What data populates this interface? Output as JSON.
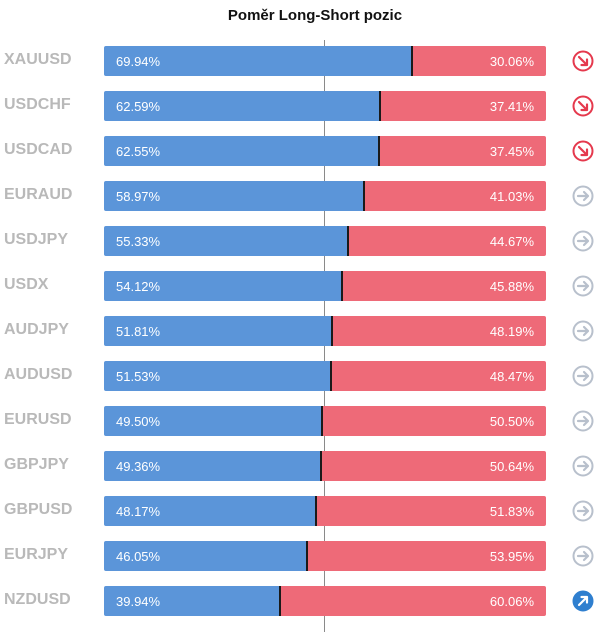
{
  "chart_data": {
    "type": "bar",
    "title": "Poměr Long-Short pozic",
    "categories": [
      "XAUUSD",
      "USDCHF",
      "USDCAD",
      "EURAUD",
      "USDJPY",
      "USDX",
      "AUDJPY",
      "AUDUSD",
      "EURUSD",
      "GBPJPY",
      "GBPUSD",
      "EURJPY",
      "NZDUSD"
    ],
    "series": [
      {
        "values": [
          69.94,
          62.59,
          62.55,
          58.97,
          55.33,
          54.12,
          51.81,
          51.53,
          49.5,
          49.36,
          48.17,
          46.05,
          39.94
        ]
      },
      {
        "values": [
          30.06,
          37.41,
          37.45,
          41.03,
          44.67,
          45.88,
          48.19,
          48.47,
          50.5,
          50.64,
          51.83,
          53.95,
          60.06
        ]
      }
    ],
    "long_labels": [
      "69.94%",
      "62.59%",
      "62.55%",
      "58.97%",
      "55.33%",
      "54.12%",
      "51.81%",
      "51.53%",
      "49.50%",
      "49.36%",
      "48.17%",
      "46.05%",
      "39.94%"
    ],
    "short_labels": [
      "30.06%",
      "37.41%",
      "37.45%",
      "41.03%",
      "44.67%",
      "45.88%",
      "48.19%",
      "48.47%",
      "50.50%",
      "50.64%",
      "51.83%",
      "53.95%",
      "60.06%"
    ],
    "trend_icons": [
      "arrow-down-right-icon",
      "arrow-down-right-icon",
      "arrow-down-right-icon",
      "arrow-right-icon",
      "arrow-right-icon",
      "arrow-right-icon",
      "arrow-right-icon",
      "arrow-right-icon",
      "arrow-right-icon",
      "arrow-right-icon",
      "arrow-right-icon",
      "arrow-right-icon",
      "arrow-up-right-icon"
    ],
    "ylim": [
      0,
      100
    ],
    "reference_line": 50,
    "stacked": true,
    "orientation": "horizontal",
    "grid": false
  },
  "colors": {
    "long": "#5b95d9",
    "short": "#ee6a78",
    "symbol_text": "#b9b9b9",
    "icon_down": "#e5394d",
    "icon_neutral": "#b8c0cc",
    "icon_up": "#2f7fcf"
  }
}
